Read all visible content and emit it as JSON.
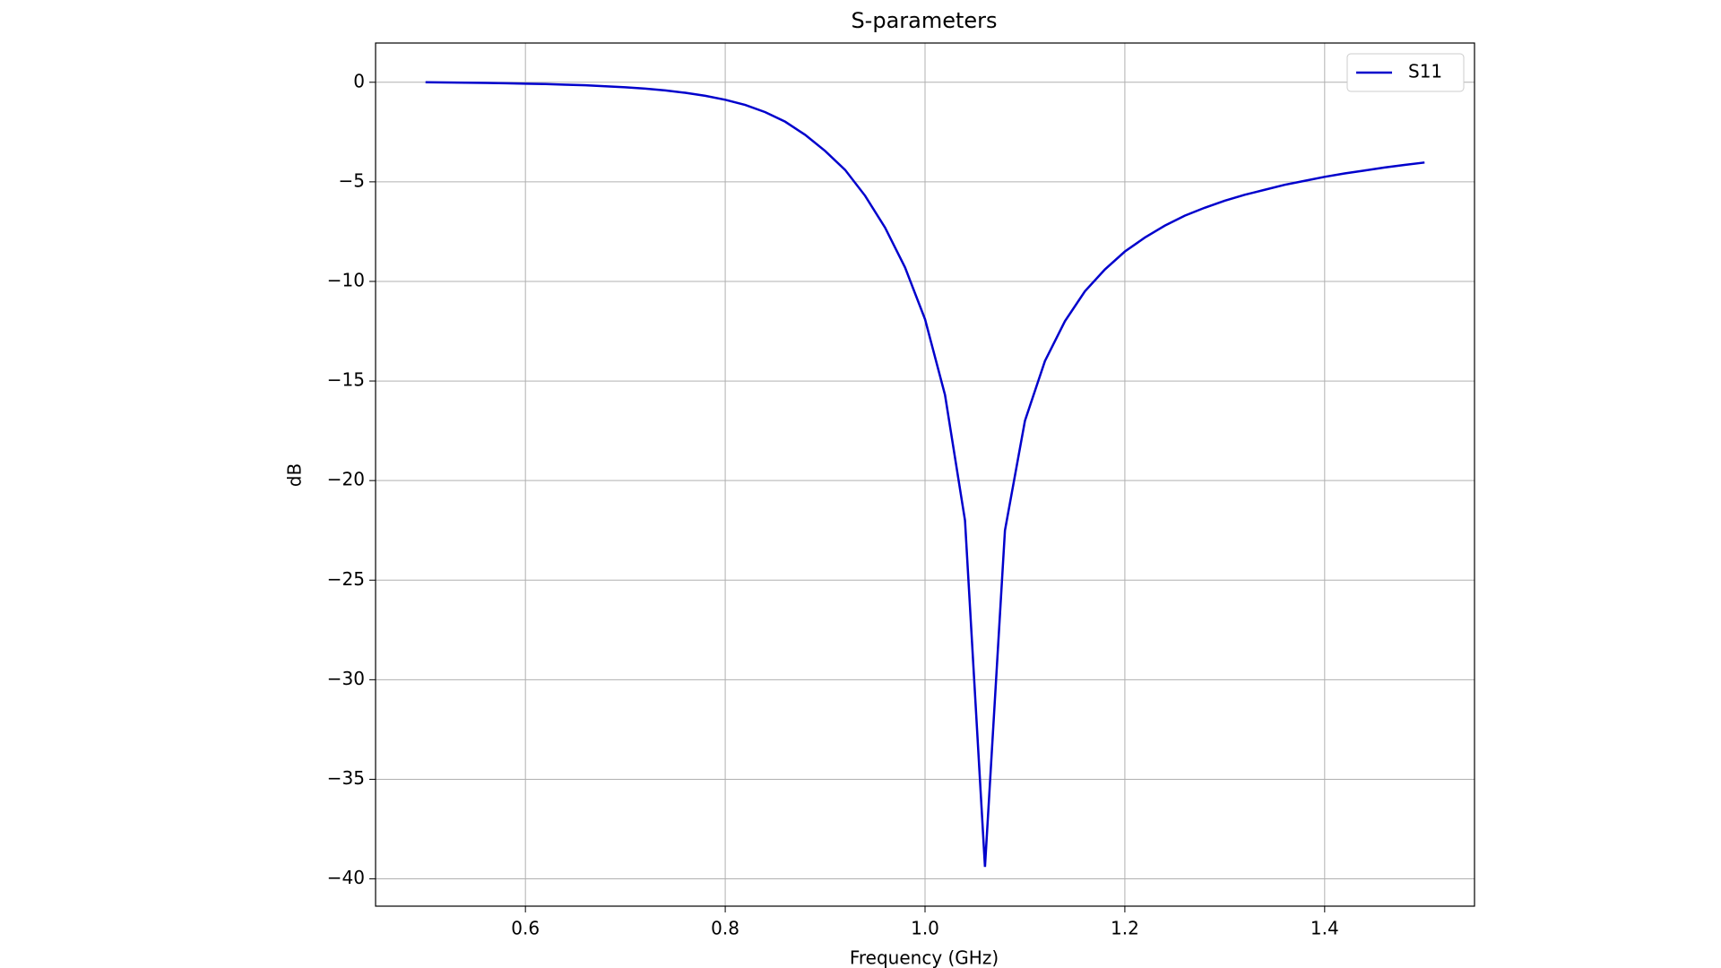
{
  "chart_data": {
    "type": "line",
    "title": "S-parameters",
    "x_label": "Frequency (GHz)",
    "y_label": "dB",
    "x": [
      0.5,
      0.52,
      0.54,
      0.56,
      0.58,
      0.6,
      0.62,
      0.64,
      0.66,
      0.68,
      0.7,
      0.72,
      0.74,
      0.76,
      0.78,
      0.8,
      0.82,
      0.84,
      0.86,
      0.88,
      0.9,
      0.92,
      0.94,
      0.96,
      0.98,
      1.0,
      1.02,
      1.04,
      1.06,
      1.08,
      1.1,
      1.12,
      1.14,
      1.16,
      1.18,
      1.2,
      1.22,
      1.24,
      1.26,
      1.28,
      1.3,
      1.32,
      1.34,
      1.36,
      1.38,
      1.4,
      1.42,
      1.44,
      1.46,
      1.48,
      1.5
    ],
    "series": [
      {
        "name": "S11",
        "color": "#0000cc",
        "values": [
          0,
          -0.01,
          -0.02,
          -0.03,
          -0.05,
          -0.07,
          -0.09,
          -0.12,
          -0.15,
          -0.2,
          -0.25,
          -0.32,
          -0.41,
          -0.53,
          -0.68,
          -0.88,
          -1.14,
          -1.5,
          -1.98,
          -2.64,
          -3.45,
          -4.4,
          -5.7,
          -7.3,
          -9.3,
          -11.9,
          -15.7,
          -22.0,
          -39.4,
          -22.5,
          -17.0,
          -14.0,
          -12.0,
          -10.5,
          -9.4,
          -8.5,
          -7.8,
          -7.2,
          -6.7,
          -6.3,
          -5.95,
          -5.65,
          -5.4,
          -5.15,
          -4.95,
          -4.75,
          -4.58,
          -4.43,
          -4.28,
          -4.15,
          -4.03
        ]
      }
    ],
    "xlim": [
      0.45,
      1.55
    ],
    "ylim": [
      -41.37,
      1.97
    ],
    "xticks": [
      0.6,
      0.8,
      {
        "value": 1,
        "label": "1.0"
      },
      1.2,
      1.4
    ],
    "yticks": [
      0,
      {
        "value": -5,
        "label": "−5"
      },
      {
        "value": -10,
        "label": "−10"
      },
      {
        "value": -15,
        "label": "−15"
      },
      {
        "value": -20,
        "label": "−20"
      },
      {
        "value": -25,
        "label": "−25"
      },
      {
        "value": -30,
        "label": "−30"
      },
      {
        "value": -35,
        "label": "−35"
      },
      {
        "value": -40,
        "label": "−40"
      }
    ],
    "grid": true,
    "legend": "upper right"
  }
}
